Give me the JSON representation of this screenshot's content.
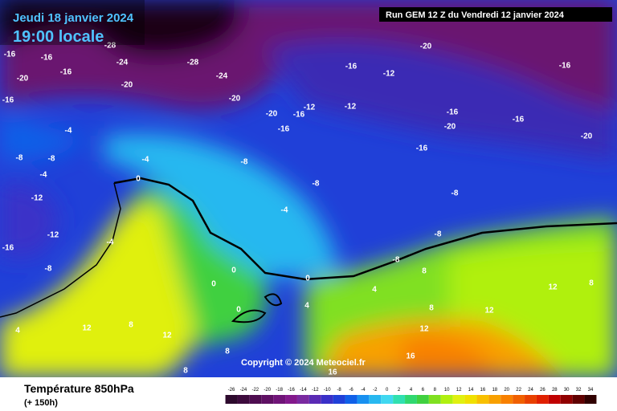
{
  "header": {
    "date": "Jeudi 18 janvier 2024",
    "time": "19:00 locale",
    "run": "Run GEM 12 Z du Vendredi 12 janvier 2024"
  },
  "copyright": "Copyright © 2024 Meteociel.fr",
  "footer": {
    "title": "Température 850hPa",
    "subtitle": "(+ 150h)"
  },
  "contour_labels": [
    -28,
    -28,
    -24,
    -24,
    -20,
    -20,
    -16,
    -16,
    -16,
    -16,
    -20,
    -20,
    -16,
    -12,
    -16,
    -16,
    -12,
    -12,
    -20,
    -16,
    -16,
    -20,
    -16,
    -20,
    -16,
    -4,
    -8,
    -8,
    -4,
    -4,
    -8,
    -8,
    -4,
    -12,
    -12,
    -16,
    -8,
    -4,
    0,
    0,
    0,
    0,
    0,
    4,
    4,
    8,
    8,
    -8,
    -8,
    -8,
    12,
    12,
    8,
    4,
    12,
    12,
    8,
    8,
    12,
    16,
    16,
    8
  ],
  "legend": {
    "values": [
      -26,
      -24,
      -22,
      -20,
      -18,
      -16,
      -14,
      -12,
      -10,
      -8,
      -6,
      -4,
      -2,
      0,
      2,
      4,
      6,
      8,
      10,
      12,
      14,
      16,
      18,
      20,
      22,
      24,
      26,
      28,
      30,
      32,
      34
    ],
    "colors": [
      "#2d0a2d",
      "#3d0b3d",
      "#4e0d50",
      "#5f1063",
      "#701478",
      "#83198c",
      "#7a2aa0",
      "#5a2ab4",
      "#3a30c8",
      "#2040d8",
      "#1060e8",
      "#1890f0",
      "#28b8f0",
      "#40d8f0",
      "#30e0b0",
      "#30d870",
      "#40d040",
      "#80e020",
      "#b0f010",
      "#e0f010",
      "#f0e000",
      "#f8c000",
      "#f8a000",
      "#f88000",
      "#f06000",
      "#e84000",
      "#e02000",
      "#c00000",
      "#900000",
      "#600000",
      "#300000"
    ]
  }
}
